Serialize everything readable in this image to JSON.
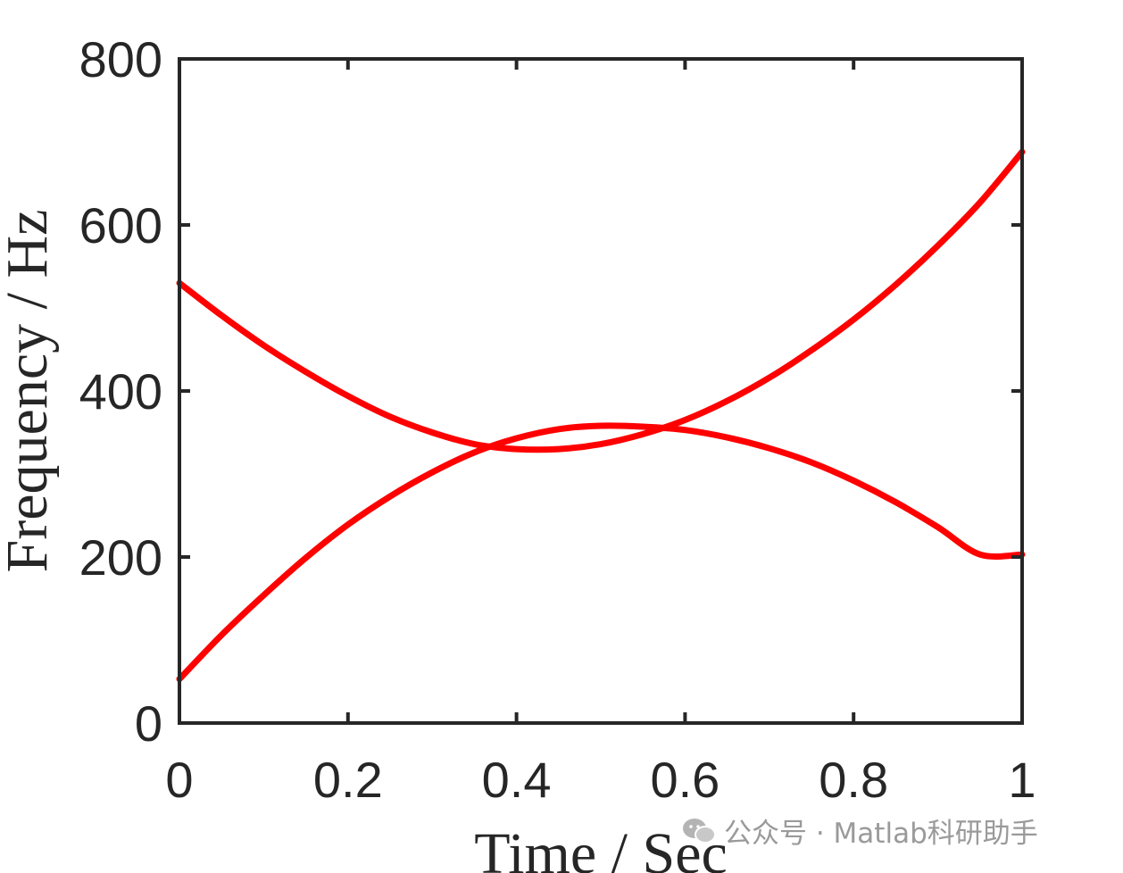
{
  "chart_data": {
    "type": "line",
    "title": "",
    "xlabel": "Time / Sec",
    "ylabel": "Frequency / Hz",
    "xlim": [
      0,
      1
    ],
    "ylim": [
      0,
      800
    ],
    "x_ticks": [
      "0",
      "0.2",
      "0.4",
      "0.6",
      "0.8",
      "1"
    ],
    "y_ticks": [
      "0",
      "200",
      "400",
      "600",
      "800"
    ],
    "grid": false,
    "box": true,
    "line_color": "#ff0000",
    "series": [
      {
        "x": [
          0,
          0.05,
          0.1,
          0.15,
          0.2,
          0.25,
          0.3,
          0.35,
          0.4,
          0.45,
          0.5,
          0.55,
          0.6,
          0.65,
          0.7,
          0.75,
          0.8,
          0.85,
          0.9,
          0.95,
          1
        ],
        "values": [
          53,
          106,
          154,
          199,
          239,
          273,
          302,
          326,
          343,
          354,
          358,
          357,
          353,
          344,
          331,
          314,
          292,
          266,
          236,
          203,
          203
        ]
      },
      {
        "x": [
          0,
          0.05,
          0.1,
          0.15,
          0.2,
          0.25,
          0.3,
          0.35,
          0.4,
          0.45,
          0.5,
          0.55,
          0.6,
          0.65,
          0.7,
          0.75,
          0.8,
          0.85,
          0.9,
          0.95,
          1
        ],
        "values": [
          530,
          491,
          455,
          423,
          394,
          369,
          350,
          336,
          330,
          330,
          336,
          348,
          365,
          388,
          416,
          449,
          486,
          528,
          575,
          627,
          688
        ]
      }
    ]
  },
  "watermark": {
    "icon": "wechat-icon",
    "text": "公众号 · Matlab科研助手"
  }
}
